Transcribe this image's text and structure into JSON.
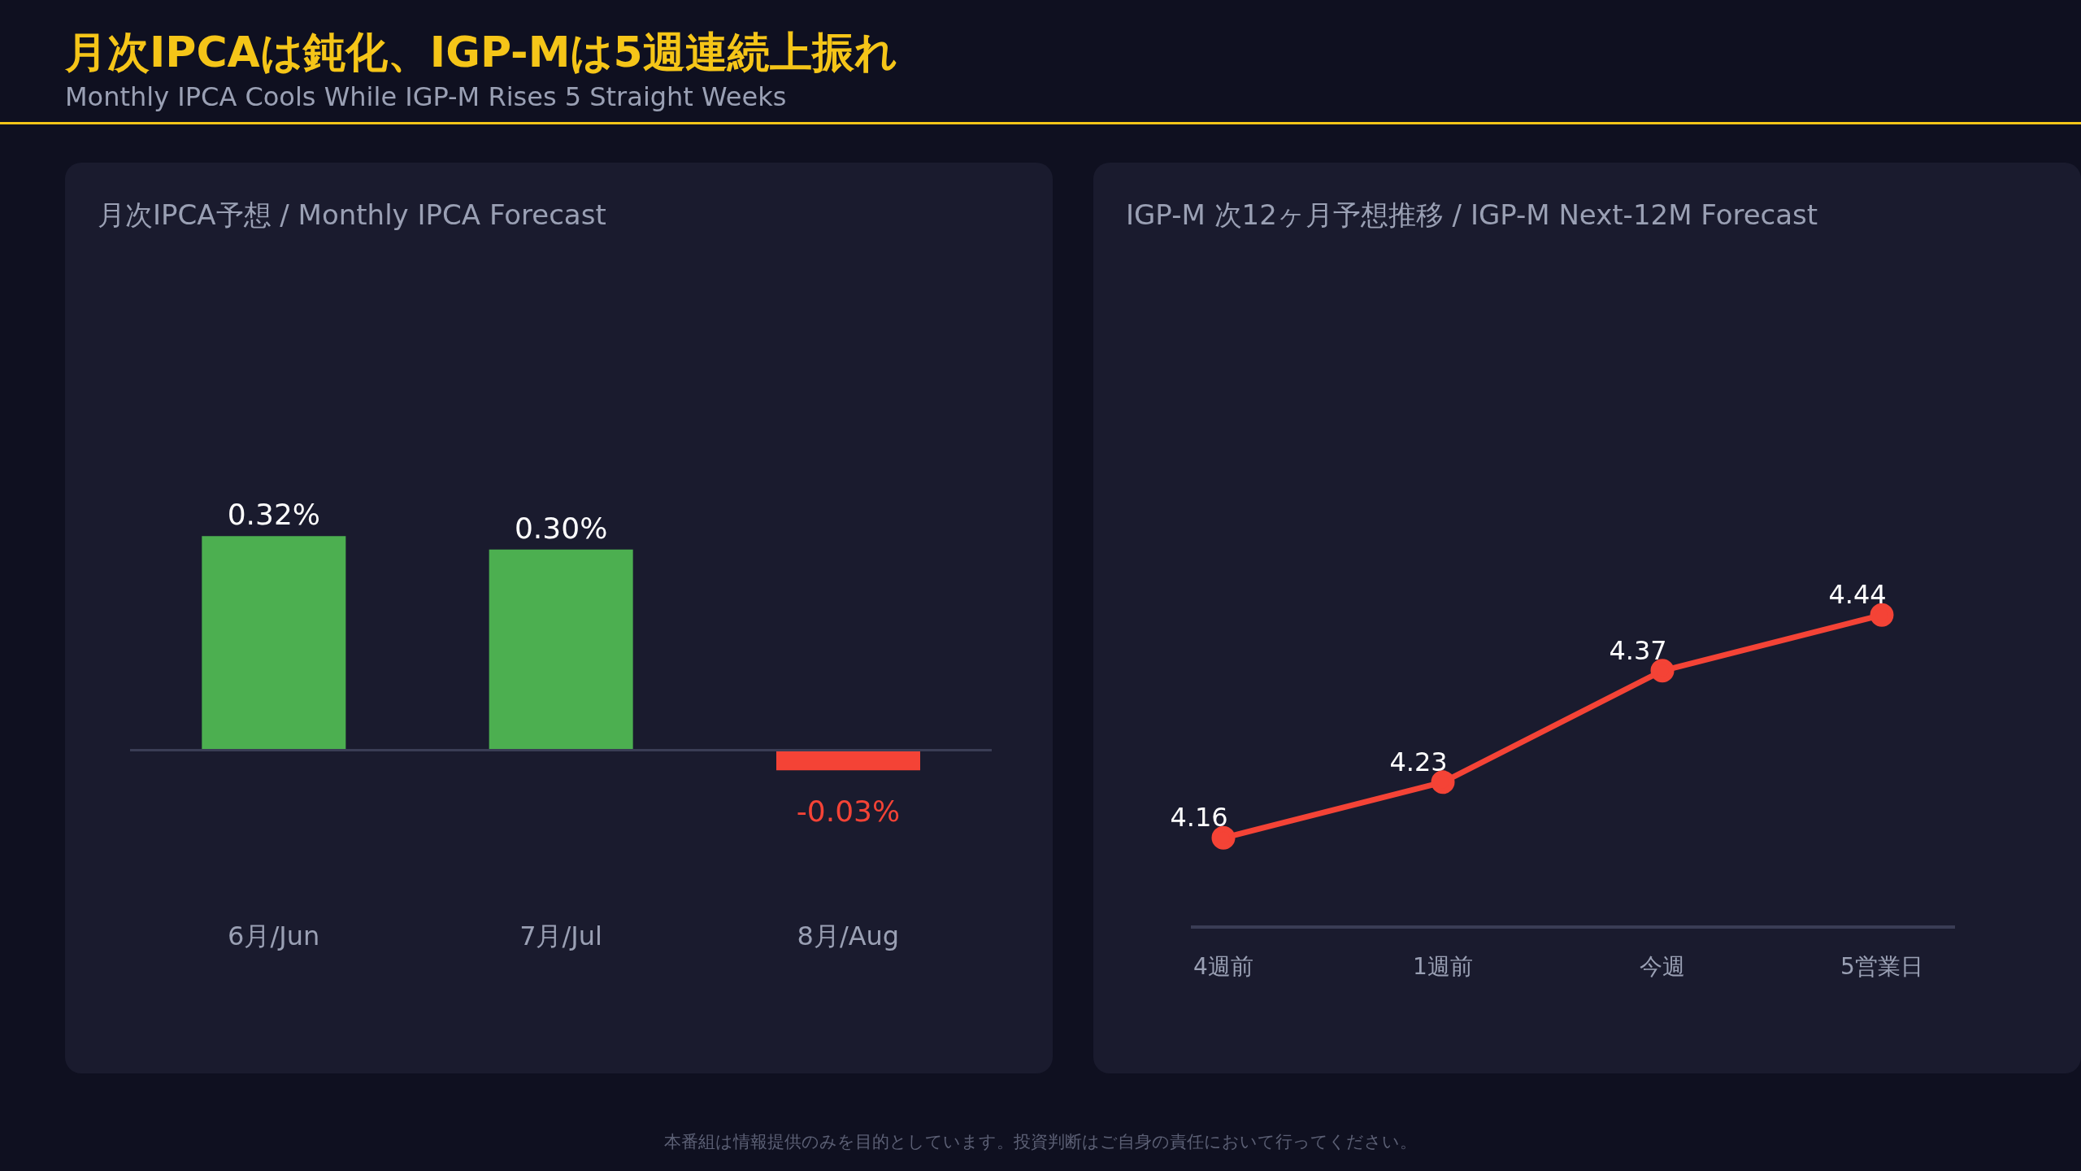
{
  "chart_data": [
    {
      "type": "other",
      "title": "月次IPCAは鈍化、IGP-Mは5週連続上振れ",
      "subtitle": "Monthly IPCA Cools While IGP-M Rises 5 Straight Weeks",
      "annotations": [
        "本番組は情報提供のみを目的としています。投資判断はご自身の責任において行ってください。"
      ]
    },
    {
      "type": "bar",
      "title": "月次IPCA予想 / Monthly IPCA Forecast",
      "categories": [
        "6月/Jun",
        "7月/Jul",
        "8月/Aug"
      ],
      "values": [
        0.32,
        0.3,
        -0.03
      ],
      "colors": [
        "#4caf50",
        "#4caf50",
        "#f44336"
      ],
      "value_labels": [
        "0.32%",
        "0.30%",
        "-0.03%"
      ],
      "tick_labels": "x"
    },
    {
      "type": "line",
      "title": "IGP-M 次12ヶ月予想推移 / IGP-M Next-12M Forecast",
      "categories": [
        "4週前",
        "1週前",
        "今週",
        "5営業日"
      ],
      "series": [
        {
          "color": "#f44336",
          "values": [
            4.16,
            4.23,
            4.37,
            4.44
          ]
        }
      ],
      "data_labels": true,
      "marker": "circle",
      "tick_labels": "x"
    }
  ]
}
